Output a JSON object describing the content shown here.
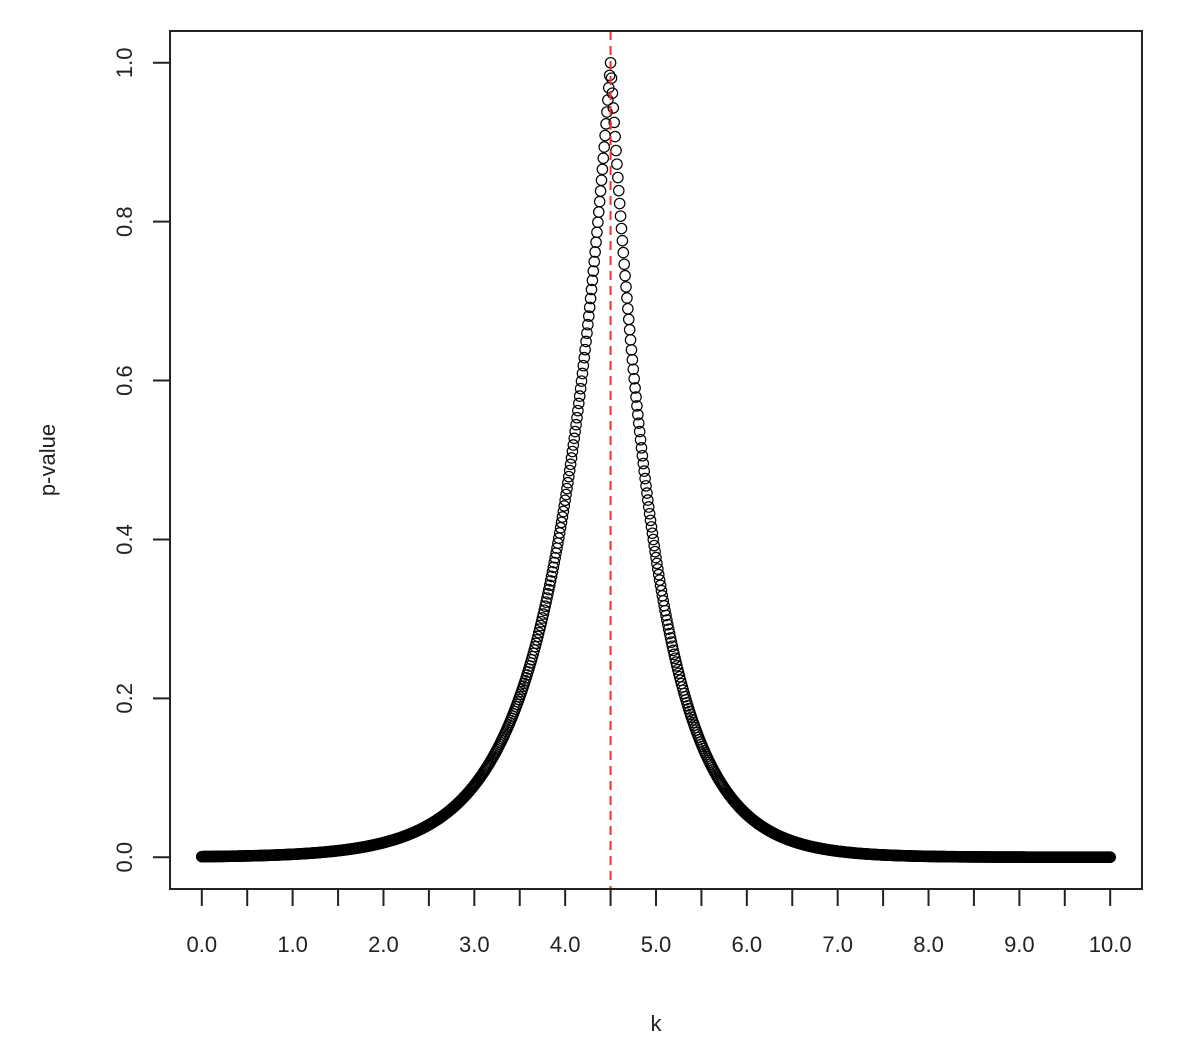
{
  "chart_data": {
    "type": "scatter",
    "title": "",
    "xlabel": "k",
    "ylabel": "p-value",
    "xlim": [
      -0.35,
      10.35
    ],
    "ylim": [
      -0.04,
      1.04
    ],
    "x_ticks": [
      0,
      0.5,
      1,
      1.5,
      2,
      2.5,
      3,
      3.5,
      4,
      4.5,
      5,
      5.5,
      6,
      6.5,
      7,
      7.5,
      8,
      8.5,
      9,
      9.5,
      10
    ],
    "x_tick_labels": [
      "0.0",
      "1.0",
      "2.0",
      "3.0",
      "4.0",
      "5.0",
      "6.0",
      "7.0",
      "8.0",
      "9.0",
      "10.0"
    ],
    "x_tick_label_values": [
      0,
      1,
      2,
      3,
      4,
      5,
      6,
      7,
      8,
      9,
      10
    ],
    "y_ticks": [
      0.0,
      0.2,
      0.4,
      0.6,
      0.8,
      1.0
    ],
    "y_tick_labels": [
      "0.0",
      "0.2",
      "0.4",
      "0.6",
      "0.8",
      "1.0"
    ],
    "grid": false,
    "marker": "open-circle",
    "point_color": "#000000",
    "series": [
      {
        "x_start": 0.0,
        "x_end": 10.0,
        "x_step": 0.01,
        "peak_x": 4.5,
        "peak_y": 1.0,
        "left_rate": 1.6,
        "right_rate": 1.95,
        "curve": "exp(-rate * |x - peak_x|)"
      }
    ],
    "vline": {
      "x": 4.5,
      "color": "#ff2a2a",
      "style": "dashed"
    }
  }
}
